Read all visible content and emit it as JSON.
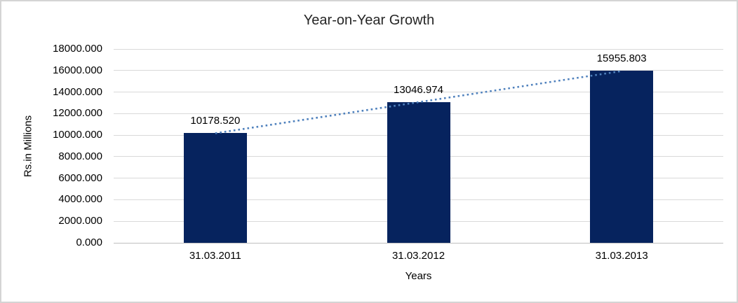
{
  "chart_data": {
    "type": "bar",
    "title": "Year-on-Year Growth",
    "xlabel": "Years",
    "ylabel": "Rs.in Millions",
    "categories": [
      "31.03.2011",
      "31.03.2012",
      "31.03.2013"
    ],
    "values": [
      10178.52,
      13046.974,
      15955.803
    ],
    "data_labels": [
      "10178.520",
      "13046.974",
      "15955.803"
    ],
    "ylim": [
      0,
      18000
    ],
    "ytick_step": 2000,
    "ytick_labels": [
      "0.000",
      "2000.000",
      "4000.000",
      "6000.000",
      "8000.000",
      "10000.000",
      "12000.000",
      "14000.000",
      "16000.000",
      "18000.000"
    ],
    "grid": true,
    "legend": "none",
    "trendline": {
      "type": "linear",
      "style": "dotted"
    },
    "colors": {
      "bar": "#06235e",
      "trendline": "#4f81bd",
      "gridline": "#d9d9d9",
      "axis_line": "#bfbfbf",
      "border": "#d4d4d4",
      "text": "#000000"
    }
  }
}
